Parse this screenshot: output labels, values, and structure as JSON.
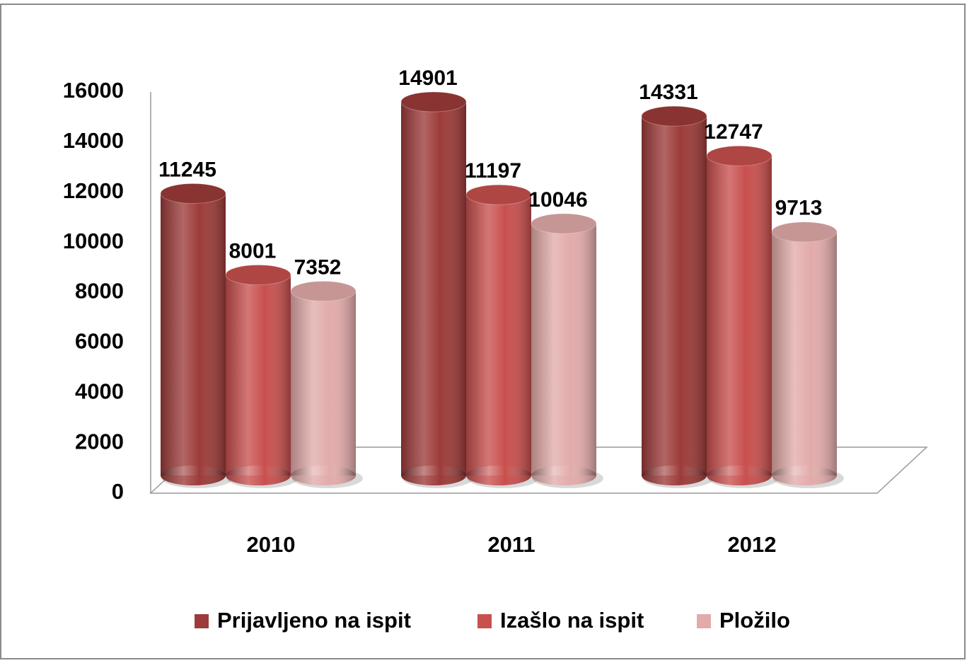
{
  "chart_data": {
    "type": "bar",
    "categories": [
      "2010",
      "2011",
      "2012"
    ],
    "series": [
      {
        "name": "Prijavljeno na ispit",
        "color": "#9c3b39",
        "values": [
          11245,
          14901,
          14331
        ]
      },
      {
        "name": "Izašlo na ispit",
        "color": "#c8504e",
        "values": [
          8001,
          11197,
          12747
        ]
      },
      {
        "name": "Pložilo",
        "color": "#e2abaa",
        "values": [
          7352,
          10046,
          9713
        ]
      }
    ],
    "ylim": [
      0,
      16000
    ],
    "yticks": [
      0,
      2000,
      4000,
      6000,
      8000,
      10000,
      12000,
      14000,
      16000
    ],
    "grid": false,
    "legend": "bottom"
  }
}
